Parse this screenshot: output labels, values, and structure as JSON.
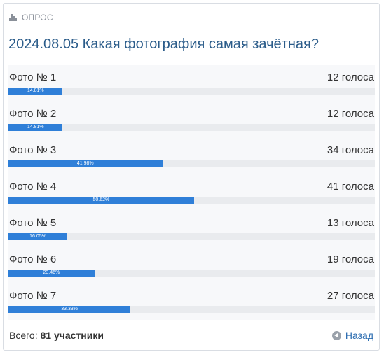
{
  "poll": {
    "header_label": "ОПРОС",
    "header_icon": "bar-chart-icon",
    "title": "2024.08.05 Какая фотография самая зачётная?",
    "options": [
      {
        "label": "Фото № 1",
        "votes_text": "12 голоса",
        "percent_text": "14.81%",
        "percent": 14.81
      },
      {
        "label": "Фото № 2",
        "votes_text": "12 голоса",
        "percent_text": "14.81%",
        "percent": 14.81
      },
      {
        "label": "Фото № 3",
        "votes_text": "34 голоса",
        "percent_text": "41.98%",
        "percent": 41.98
      },
      {
        "label": "Фото № 4",
        "votes_text": "41 голоса",
        "percent_text": "50.62%",
        "percent": 50.62
      },
      {
        "label": "Фото № 5",
        "votes_text": "13 голоса",
        "percent_text": "16.05%",
        "percent": 16.05
      },
      {
        "label": "Фото № 6",
        "votes_text": "19 голоса",
        "percent_text": "23.46%",
        "percent": 23.46
      },
      {
        "label": "Фото № 7",
        "votes_text": "27 голоса",
        "percent_text": "33.33%",
        "percent": 33.33
      }
    ],
    "total_label": "Всего:",
    "total_value": "81 участники",
    "back_label": "Назад",
    "back_icon": "arrow-left-circle-icon"
  },
  "colors": {
    "accent": "#2f7fd8",
    "title": "#2b5c8a",
    "link": "#2b6cb0",
    "track": "#e9ebee"
  }
}
